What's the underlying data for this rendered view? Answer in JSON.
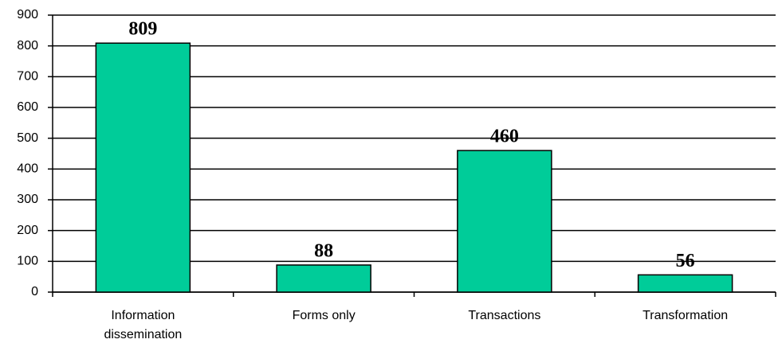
{
  "chart_data": {
    "type": "bar",
    "categories": [
      "Information dissemination",
      "Forms only",
      "Transactions",
      "Transformation"
    ],
    "values": [
      809,
      88,
      460,
      56
    ],
    "color": "#00cc99",
    "ylim": [
      0,
      900
    ],
    "yticks": [
      0,
      100,
      200,
      300,
      400,
      500,
      600,
      700,
      800,
      900
    ],
    "grid": true
  }
}
